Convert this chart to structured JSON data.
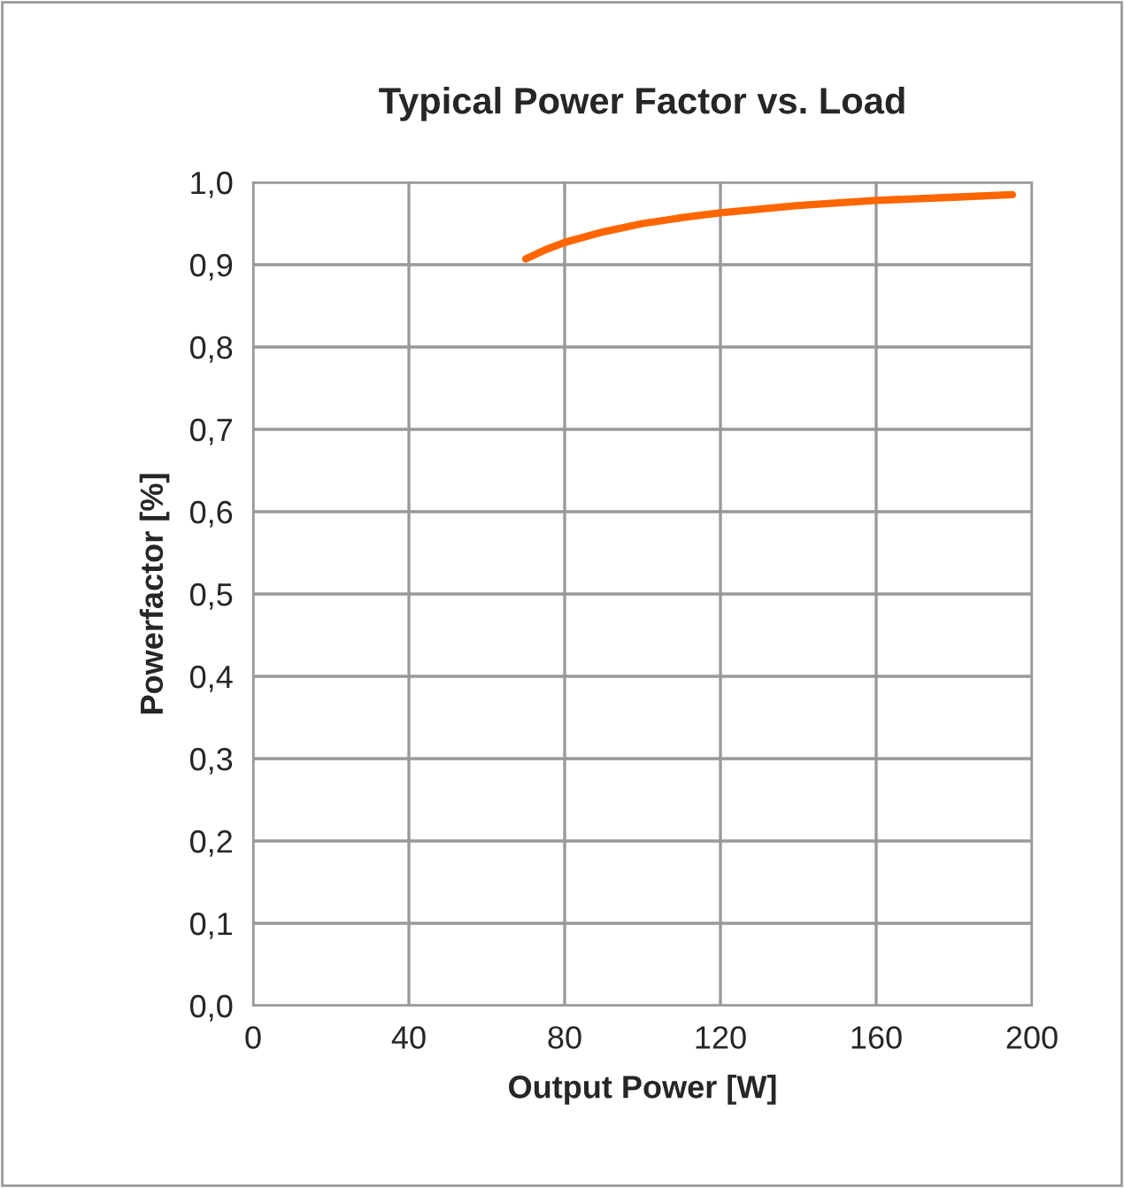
{
  "chart_data": {
    "type": "line",
    "title": "Typical Power Factor vs. Load",
    "xlabel": "Output Power [W]",
    "ylabel": "Powerfactor [%]",
    "series": [
      {
        "color": "#ff6600",
        "x": [
          70,
          75,
          80,
          90,
          100,
          110,
          120,
          140,
          160,
          180,
          195
        ],
        "values": [
          0.907,
          0.918,
          0.927,
          0.94,
          0.95,
          0.957,
          0.963,
          0.972,
          0.978,
          0.982,
          0.985
        ]
      }
    ],
    "xlim": [
      0,
      200
    ],
    "xticks": [
      0,
      40,
      80,
      120,
      160,
      200
    ],
    "ylim": [
      0,
      1
    ],
    "yticks": [
      {
        "value": 0,
        "label": "0,0"
      },
      {
        "value": 0.1,
        "label": "0,1"
      },
      {
        "value": 0.2,
        "label": "0,2"
      },
      {
        "value": 0.3,
        "label": "0,3"
      },
      {
        "value": 0.4,
        "label": "0,4"
      },
      {
        "value": 0.5,
        "label": "0,5"
      },
      {
        "value": 0.6,
        "label": "0,6"
      },
      {
        "value": 0.7,
        "label": "0,7"
      },
      {
        "value": 0.8,
        "label": "0,8"
      },
      {
        "value": 0.9,
        "label": "0,9"
      },
      {
        "value": 1,
        "label": "1,0"
      }
    ],
    "grid": true,
    "legend": false
  }
}
